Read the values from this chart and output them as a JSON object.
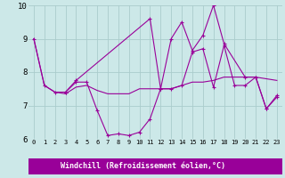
{
  "background_color": "#cce8e8",
  "grid_color": "#aacccc",
  "line_color": "#990099",
  "marker": "+",
  "xlim": [
    -0.5,
    23.5
  ],
  "ylim": [
    6,
    10
  ],
  "yticks": [
    6,
    7,
    8,
    9,
    10
  ],
  "xlabel": "Windchill (Refroidissement éolien,°C)",
  "series1_x": [
    0,
    1,
    2,
    3,
    4,
    5,
    6,
    7,
    8,
    9,
    10,
    11,
    12,
    13,
    14,
    15,
    16,
    17,
    18,
    19,
    20,
    21,
    22,
    23
  ],
  "series1_y": [
    9.0,
    7.6,
    7.4,
    7.4,
    7.7,
    7.7,
    6.85,
    6.1,
    6.15,
    6.1,
    6.2,
    6.6,
    7.5,
    7.5,
    7.6,
    8.6,
    8.7,
    7.55,
    8.8,
    7.6,
    7.6,
    7.85,
    6.9,
    7.3
  ],
  "series2_x": [
    0,
    1,
    2,
    3,
    4,
    5,
    6,
    7,
    8,
    9,
    10,
    11,
    12,
    13,
    14,
    15,
    16,
    17,
    18,
    19,
    20,
    21,
    22,
    23
  ],
  "series2_y": [
    9.0,
    7.6,
    7.4,
    7.35,
    7.55,
    7.6,
    7.45,
    7.35,
    7.35,
    7.35,
    7.5,
    7.5,
    7.5,
    7.5,
    7.6,
    7.7,
    7.7,
    7.75,
    7.85,
    7.85,
    7.85,
    7.85,
    7.8,
    7.75
  ],
  "series3_x": [
    3,
    4,
    11,
    12,
    13,
    14,
    15,
    16,
    17,
    18,
    20,
    21,
    22,
    23
  ],
  "series3_y": [
    7.4,
    7.75,
    9.6,
    7.5,
    9.0,
    9.5,
    8.65,
    9.1,
    10.0,
    8.85,
    7.85,
    7.85,
    6.9,
    7.25
  ]
}
